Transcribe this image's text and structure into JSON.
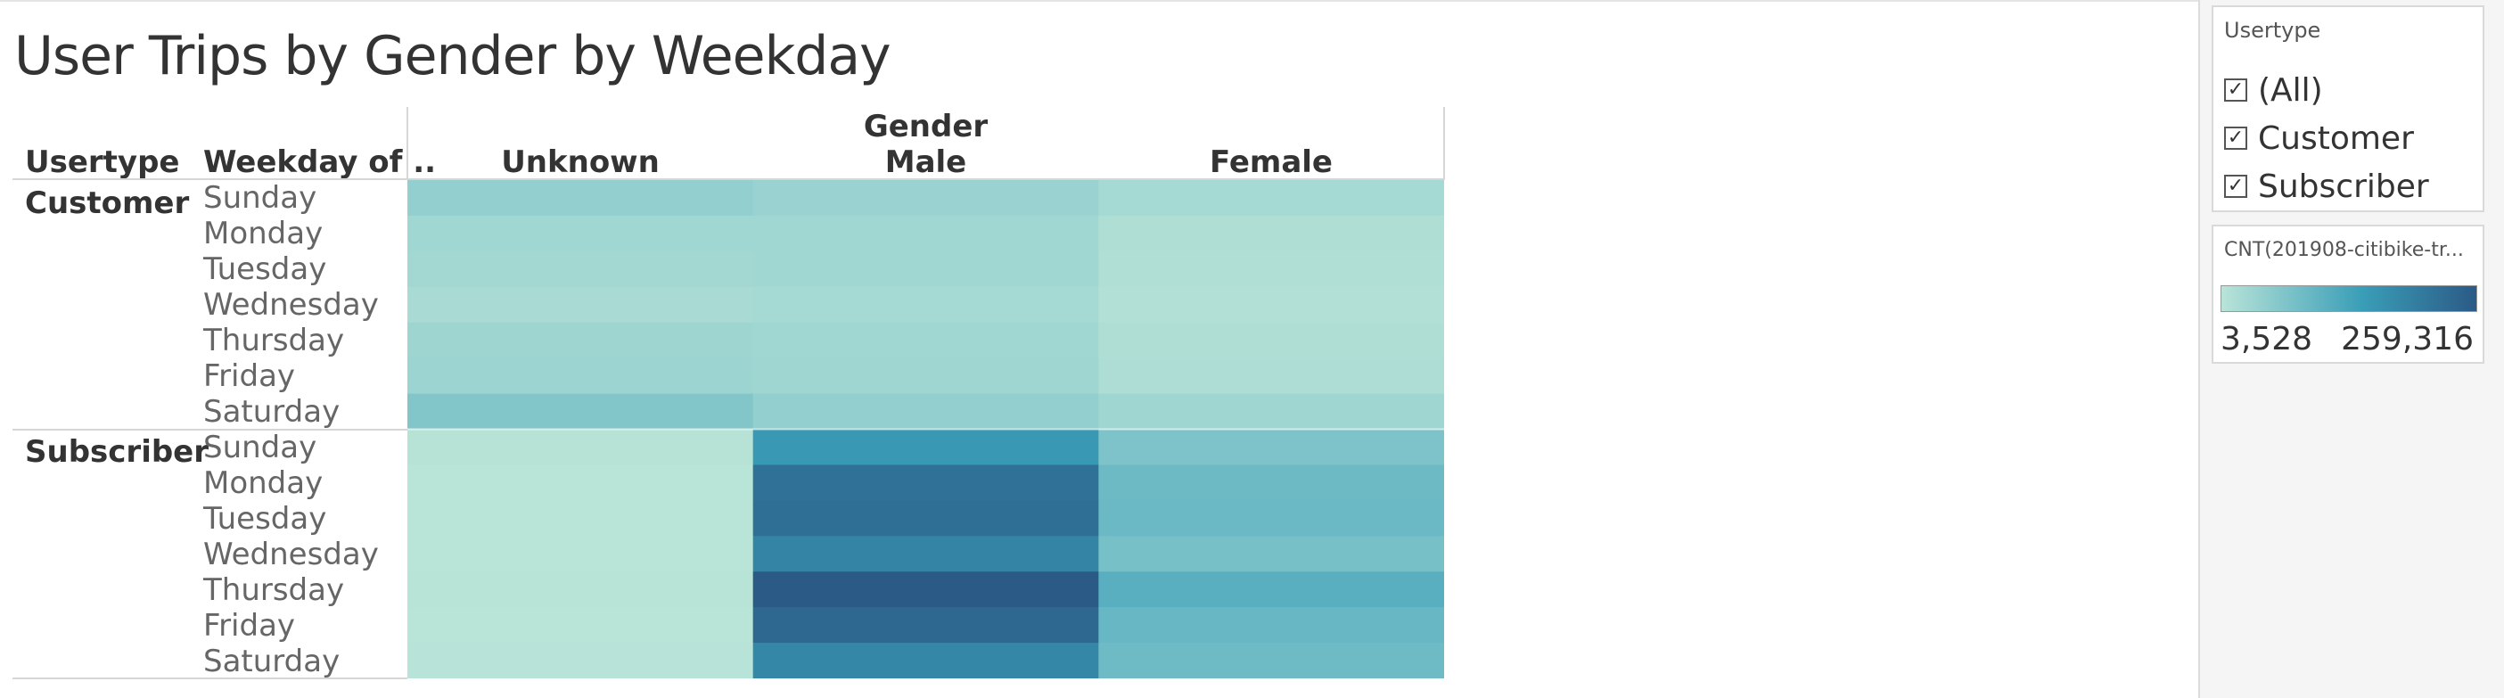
{
  "title": "User Trips by Gender by Weekday",
  "headers": {
    "usertype": "Usertype",
    "weekday": "Weekday of ..",
    "gender": "Gender"
  },
  "filter": {
    "title": "Usertype",
    "items": [
      {
        "label": "(All)",
        "checked": true
      },
      {
        "label": "Customer",
        "checked": true
      },
      {
        "label": "Subscriber",
        "checked": true
      }
    ]
  },
  "legend": {
    "title": "CNT(201908-citibike-tr...",
    "min_label": "3,528",
    "max_label": "259,316",
    "color_low": "#b9e4d8",
    "color_mid": "#3a9eb8",
    "color_high": "#2b5a86"
  },
  "chart_data": {
    "type": "heatmap",
    "title": "User Trips by Gender by Weekday",
    "columns": [
      "Unknown",
      "Male",
      "Female"
    ],
    "rows": [
      {
        "usertype": "Customer",
        "weekday": "Sunday",
        "values": [
          42000,
          36000,
          24000
        ]
      },
      {
        "usertype": "Customer",
        "weekday": "Monday",
        "values": [
          28000,
          28000,
          14000
        ]
      },
      {
        "usertype": "Customer",
        "weekday": "Tuesday",
        "values": [
          27000,
          28000,
          13000
        ]
      },
      {
        "usertype": "Customer",
        "weekday": "Wednesday",
        "values": [
          20000,
          24000,
          11000
        ]
      },
      {
        "usertype": "Customer",
        "weekday": "Thursday",
        "values": [
          31000,
          28000,
          14000
        ]
      },
      {
        "usertype": "Customer",
        "weekday": "Friday",
        "values": [
          33000,
          30000,
          16000
        ]
      },
      {
        "usertype": "Customer",
        "weekday": "Saturday",
        "values": [
          58000,
          42000,
          30000
        ]
      },
      {
        "usertype": "Subscriber",
        "weekday": "Sunday",
        "values": [
          6000,
          140000,
          64000
        ]
      },
      {
        "usertype": "Subscriber",
        "weekday": "Monday",
        "values": [
          3528,
          215000,
          80000
        ]
      },
      {
        "usertype": "Subscriber",
        "weekday": "Tuesday",
        "values": [
          3800,
          220000,
          82000
        ]
      },
      {
        "usertype": "Subscriber",
        "weekday": "Wednesday",
        "values": [
          4000,
          180000,
          70000
        ]
      },
      {
        "usertype": "Subscriber",
        "weekday": "Thursday",
        "values": [
          4200,
          259316,
          100000
        ]
      },
      {
        "usertype": "Subscriber",
        "weekday": "Friday",
        "values": [
          4000,
          235000,
          85000
        ]
      },
      {
        "usertype": "Subscriber",
        "weekday": "Saturday",
        "values": [
          5000,
          175000,
          78000
        ]
      }
    ],
    "color_range": [
      3528,
      259316
    ],
    "legend": "top-right"
  }
}
